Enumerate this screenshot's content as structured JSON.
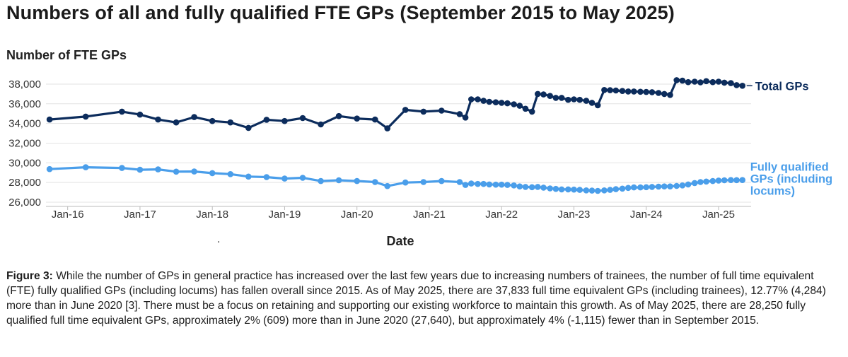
{
  "title": "Numbers of all and fully qualified FTE GPs (September 2015 to May 2025)",
  "stray_mark": ".",
  "caption": {
    "figure_label": "Figure 3:",
    "text": " While the number of GPs in general practice has increased over the last few years due to increasing numbers of trainees, the number of full time equivalent (FTE) fully qualified GPs (including locums) has fallen overall since 2015. As of May 2025, there are 37,833 full time equivalent GPs (including trainees), 12.77% (4,284) more than in June 2020 [3]. There must be a focus on retaining and supporting our existing workforce to maintain this growth. As of May 2025, there are 28,250 fully qualified full time equivalent GPs, approximately 2% (609) more than in June 2020 (27,640), but approximately 4% (-1,115) fewer than in September 2015."
  },
  "colors": {
    "total": "#0c2c5c",
    "qualified": "#4a9eea",
    "grid": "#e3e3e3",
    "axis_text": "#333333"
  },
  "chart_data": {
    "type": "line",
    "title": "Numbers of all and fully qualified FTE GPs (September 2015 to May 2025)",
    "ylabel": "Number of FTE GPs",
    "xlabel": "Date",
    "ylim": [
      26000,
      38500
    ],
    "yticks": [
      26000,
      28000,
      30000,
      32000,
      34000,
      36000,
      38000
    ],
    "ytick_labels": [
      "26,000",
      "28,000",
      "30,000",
      "32,000",
      "34,000",
      "36,000",
      "38,000"
    ],
    "xlim": [
      2015.7,
      2025.45
    ],
    "xticks": [
      2016.0,
      2017.0,
      2018.0,
      2019.0,
      2020.0,
      2021.0,
      2022.0,
      2023.0,
      2024.0,
      2025.0
    ],
    "xtick_labels": [
      "Jan-16",
      "Jan-17",
      "Jan-18",
      "Jan-19",
      "Jan-20",
      "Jan-21",
      "Jan-22",
      "Jan-23",
      "Jan-24",
      "Jan-25"
    ],
    "grid": true,
    "series": [
      {
        "name": "Total GPs",
        "label": "Total GPs",
        "x": [
          2015.75,
          2016.25,
          2016.75,
          2017.0,
          2017.25,
          2017.5,
          2017.75,
          2018.0,
          2018.25,
          2018.5,
          2018.75,
          2019.0,
          2019.25,
          2019.5,
          2019.75,
          2020.0,
          2020.25,
          2020.42,
          2020.67,
          2020.92,
          2021.17,
          2021.42,
          2021.5,
          2021.58,
          2021.67,
          2021.75,
          2021.83,
          2021.92,
          2022.0,
          2022.08,
          2022.17,
          2022.25,
          2022.33,
          2022.42,
          2022.5,
          2022.58,
          2022.67,
          2022.75,
          2022.83,
          2022.92,
          2023.0,
          2023.08,
          2023.17,
          2023.25,
          2023.33,
          2023.42,
          2023.5,
          2023.58,
          2023.67,
          2023.75,
          2023.83,
          2023.92,
          2024.0,
          2024.08,
          2024.17,
          2024.25,
          2024.33,
          2024.42,
          2024.5,
          2024.58,
          2024.67,
          2024.75,
          2024.83,
          2024.92,
          2025.0,
          2025.08,
          2025.17,
          2025.25,
          2025.33
        ],
        "values": [
          34400,
          34700,
          35200,
          34900,
          34400,
          34100,
          34650,
          34250,
          34100,
          33550,
          34380,
          34250,
          34550,
          33900,
          34750,
          34500,
          34400,
          33500,
          35380,
          35200,
          35300,
          34950,
          34600,
          36450,
          36450,
          36300,
          36200,
          36150,
          36100,
          36050,
          35950,
          35800,
          35500,
          35200,
          37000,
          36950,
          36800,
          36600,
          36600,
          36400,
          36450,
          36400,
          36300,
          36100,
          35850,
          37400,
          37380,
          37350,
          37300,
          37250,
          37250,
          37220,
          37200,
          37180,
          37100,
          37000,
          36900,
          38400,
          38350,
          38200,
          38250,
          38180,
          38300,
          38200,
          38250,
          38150,
          38100,
          37900,
          37833
        ]
      },
      {
        "name": "Fully qualified GPs (including locums)",
        "label": "Fully qualified GPs (including locums)",
        "label_lines": [
          "Fully qualified",
          "GPs (including",
          "locums)"
        ],
        "x": [
          2015.75,
          2016.25,
          2016.75,
          2017.0,
          2017.25,
          2017.5,
          2017.75,
          2018.0,
          2018.25,
          2018.5,
          2018.75,
          2019.0,
          2019.25,
          2019.5,
          2019.75,
          2020.0,
          2020.25,
          2020.42,
          2020.67,
          2020.92,
          2021.17,
          2021.42,
          2021.5,
          2021.58,
          2021.67,
          2021.75,
          2021.83,
          2021.92,
          2022.0,
          2022.08,
          2022.17,
          2022.25,
          2022.33,
          2022.42,
          2022.5,
          2022.58,
          2022.67,
          2022.75,
          2022.83,
          2022.92,
          2023.0,
          2023.08,
          2023.17,
          2023.25,
          2023.33,
          2023.42,
          2023.5,
          2023.58,
          2023.67,
          2023.75,
          2023.83,
          2023.92,
          2024.0,
          2024.08,
          2024.17,
          2024.25,
          2024.33,
          2024.42,
          2024.5,
          2024.58,
          2024.67,
          2024.75,
          2024.83,
          2024.92,
          2025.0,
          2025.08,
          2025.17,
          2025.25,
          2025.33
        ],
        "values": [
          29365,
          29550,
          29480,
          29300,
          29330,
          29100,
          29120,
          28950,
          28850,
          28600,
          28550,
          28400,
          28480,
          28150,
          28230,
          28150,
          28050,
          27640,
          28000,
          28050,
          28150,
          28050,
          27750,
          27900,
          27850,
          27850,
          27800,
          27780,
          27780,
          27750,
          27700,
          27600,
          27550,
          27520,
          27550,
          27480,
          27400,
          27350,
          27300,
          27300,
          27280,
          27250,
          27200,
          27180,
          27150,
          27200,
          27250,
          27320,
          27380,
          27450,
          27500,
          27500,
          27520,
          27550,
          27580,
          27600,
          27600,
          27650,
          27700,
          27800,
          27950,
          28050,
          28100,
          28150,
          28200,
          28230,
          28250,
          28240,
          28250
        ]
      }
    ]
  }
}
